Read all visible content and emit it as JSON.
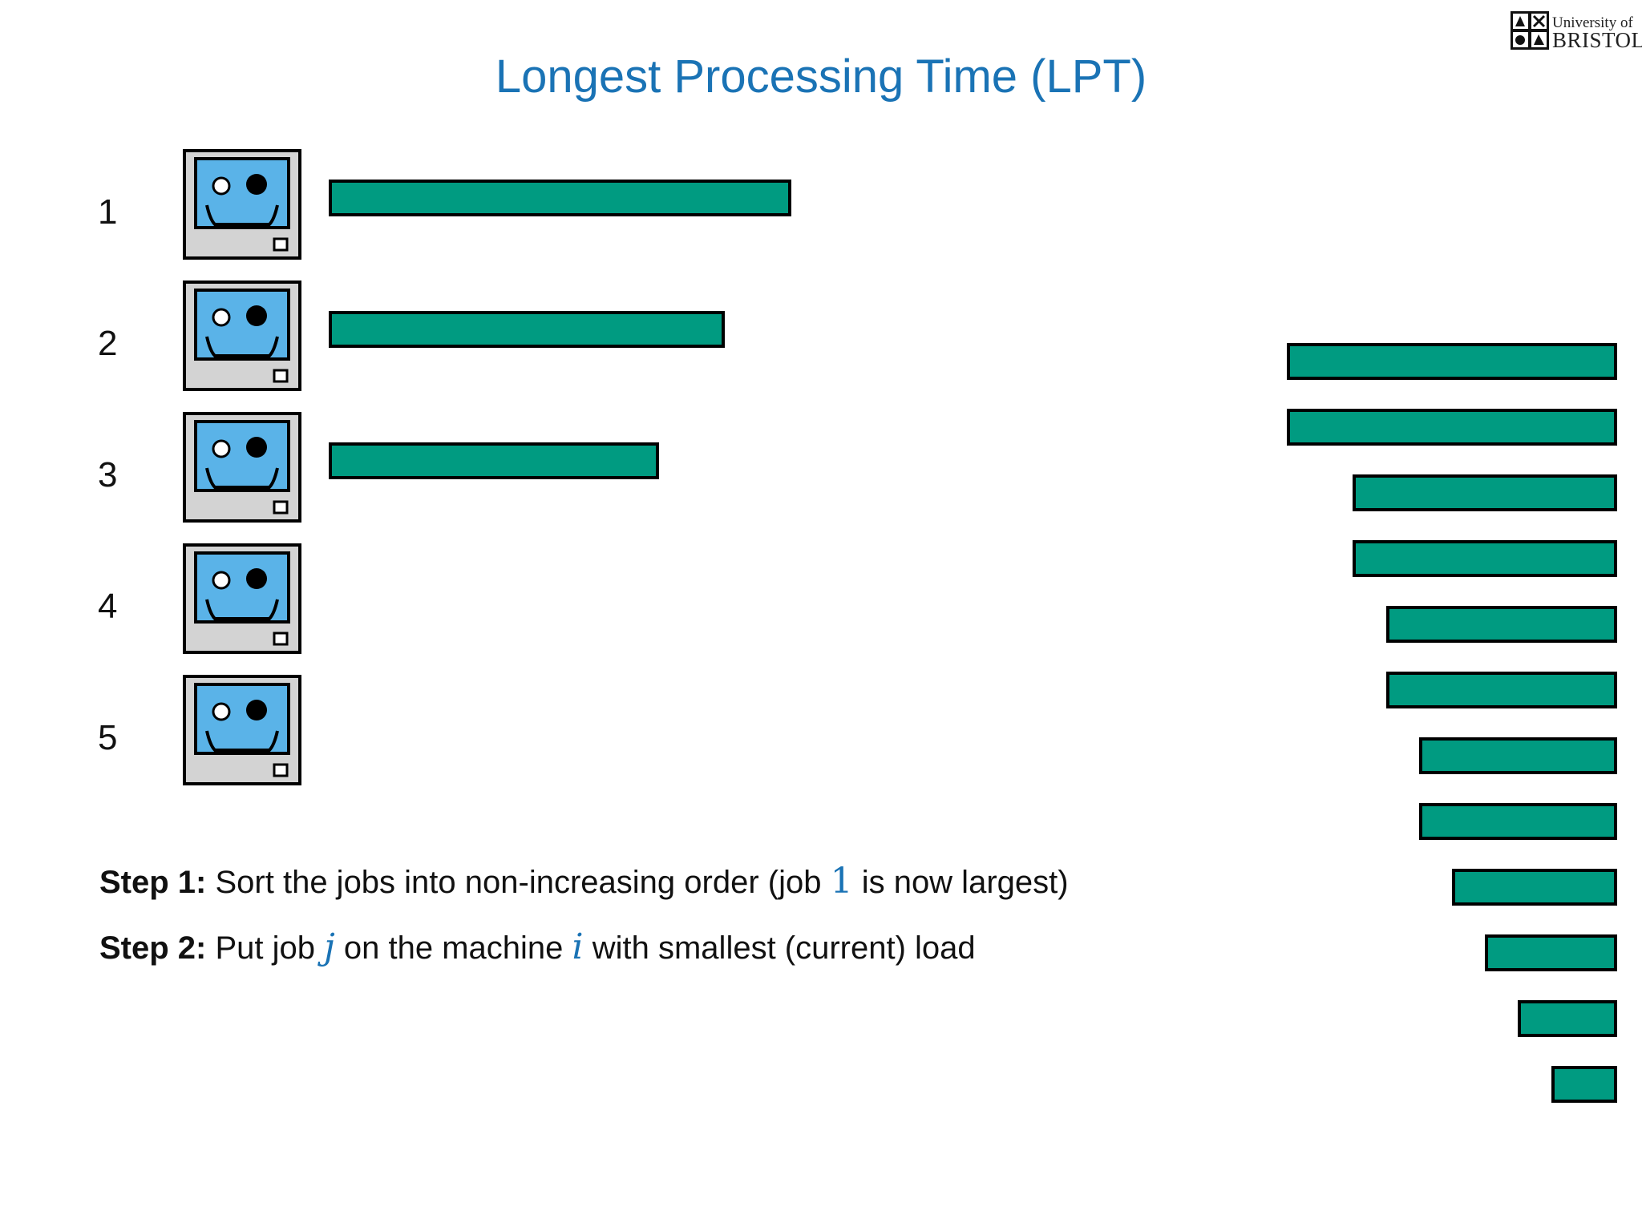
{
  "title": "Longest Processing Time (LPT)",
  "logo": {
    "line1": "University of",
    "line2": "BRISTOL"
  },
  "machines": [
    {
      "label": "1",
      "load": 14
    },
    {
      "label": "2",
      "load": 12
    },
    {
      "label": "3",
      "load": 10
    },
    {
      "label": "4",
      "load": 0
    },
    {
      "label": "5",
      "load": 0
    }
  ],
  "remaining_jobs": [
    10,
    10,
    8,
    8,
    7,
    7,
    6,
    6,
    5,
    4,
    3,
    2
  ],
  "colors": {
    "job": "#009b81",
    "title": "#1a73b5",
    "screen": "#5ab3e8",
    "case": "#d3d3d3"
  },
  "steps": [
    {
      "label": "Step 1:",
      "pre": "Sort the jobs into non-increasing order (job ",
      "math": "1",
      "post": " is now largest)"
    },
    {
      "label": "Step 2:",
      "pre": "Put job ",
      "math": "j",
      "mid": " on the machine ",
      "math2": "i",
      "post": " with smallest (current) load"
    }
  ]
}
